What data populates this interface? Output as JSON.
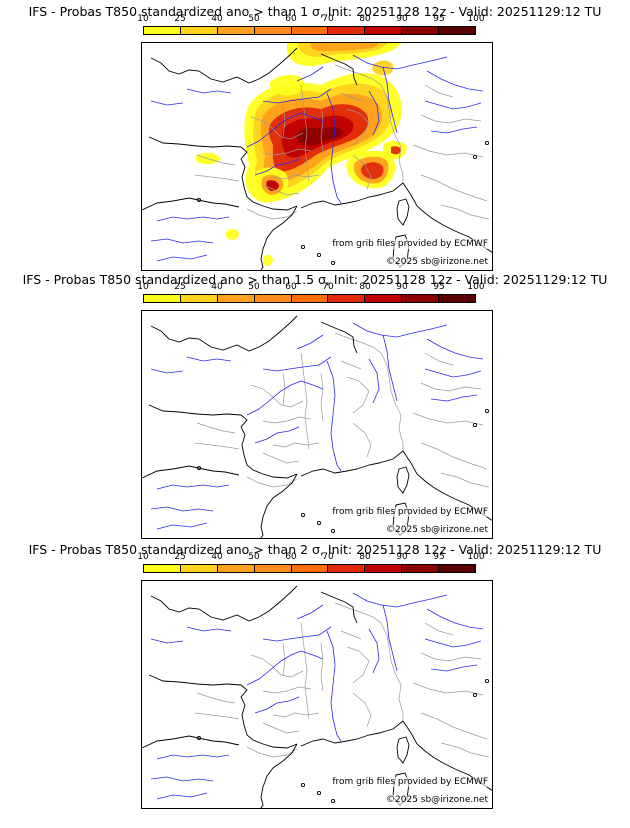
{
  "panels": [
    {
      "title": "IFS - Probas T850  standardized ano > than 1 σ, Init: 20251128 12z - Valid: 20251129:12 TU",
      "has_probability_field": true
    },
    {
      "title": "IFS - Probas T850  standardized ano > than 1.5 σ, Init: 20251128 12z - Valid: 20251129:12 TU",
      "has_probability_field": false
    },
    {
      "title": "IFS - Probas T850  standardized ano > than 2 σ, Init: 20251128 12z - Valid: 20251129:12 TU",
      "has_probability_field": false
    }
  ],
  "scale": {
    "labels": [
      "10",
      "25",
      "40",
      "50",
      "60",
      "70",
      "80",
      "90",
      "95",
      "100"
    ],
    "colors": [
      "#ffff1e",
      "#ffd21e",
      "#ffa01e",
      "#ff8c1e",
      "#ff6e0a",
      "#e1280a",
      "#be0000",
      "#8c0000",
      "#5a0000"
    ]
  },
  "credit": {
    "line1": "from grib files provided by ECMWF",
    "line2": "©2025 sb@irizone.net"
  },
  "colors": {
    "coast": "#000000",
    "rivers": "#2a2ae6",
    "borders": "#9a9a9a"
  }
}
